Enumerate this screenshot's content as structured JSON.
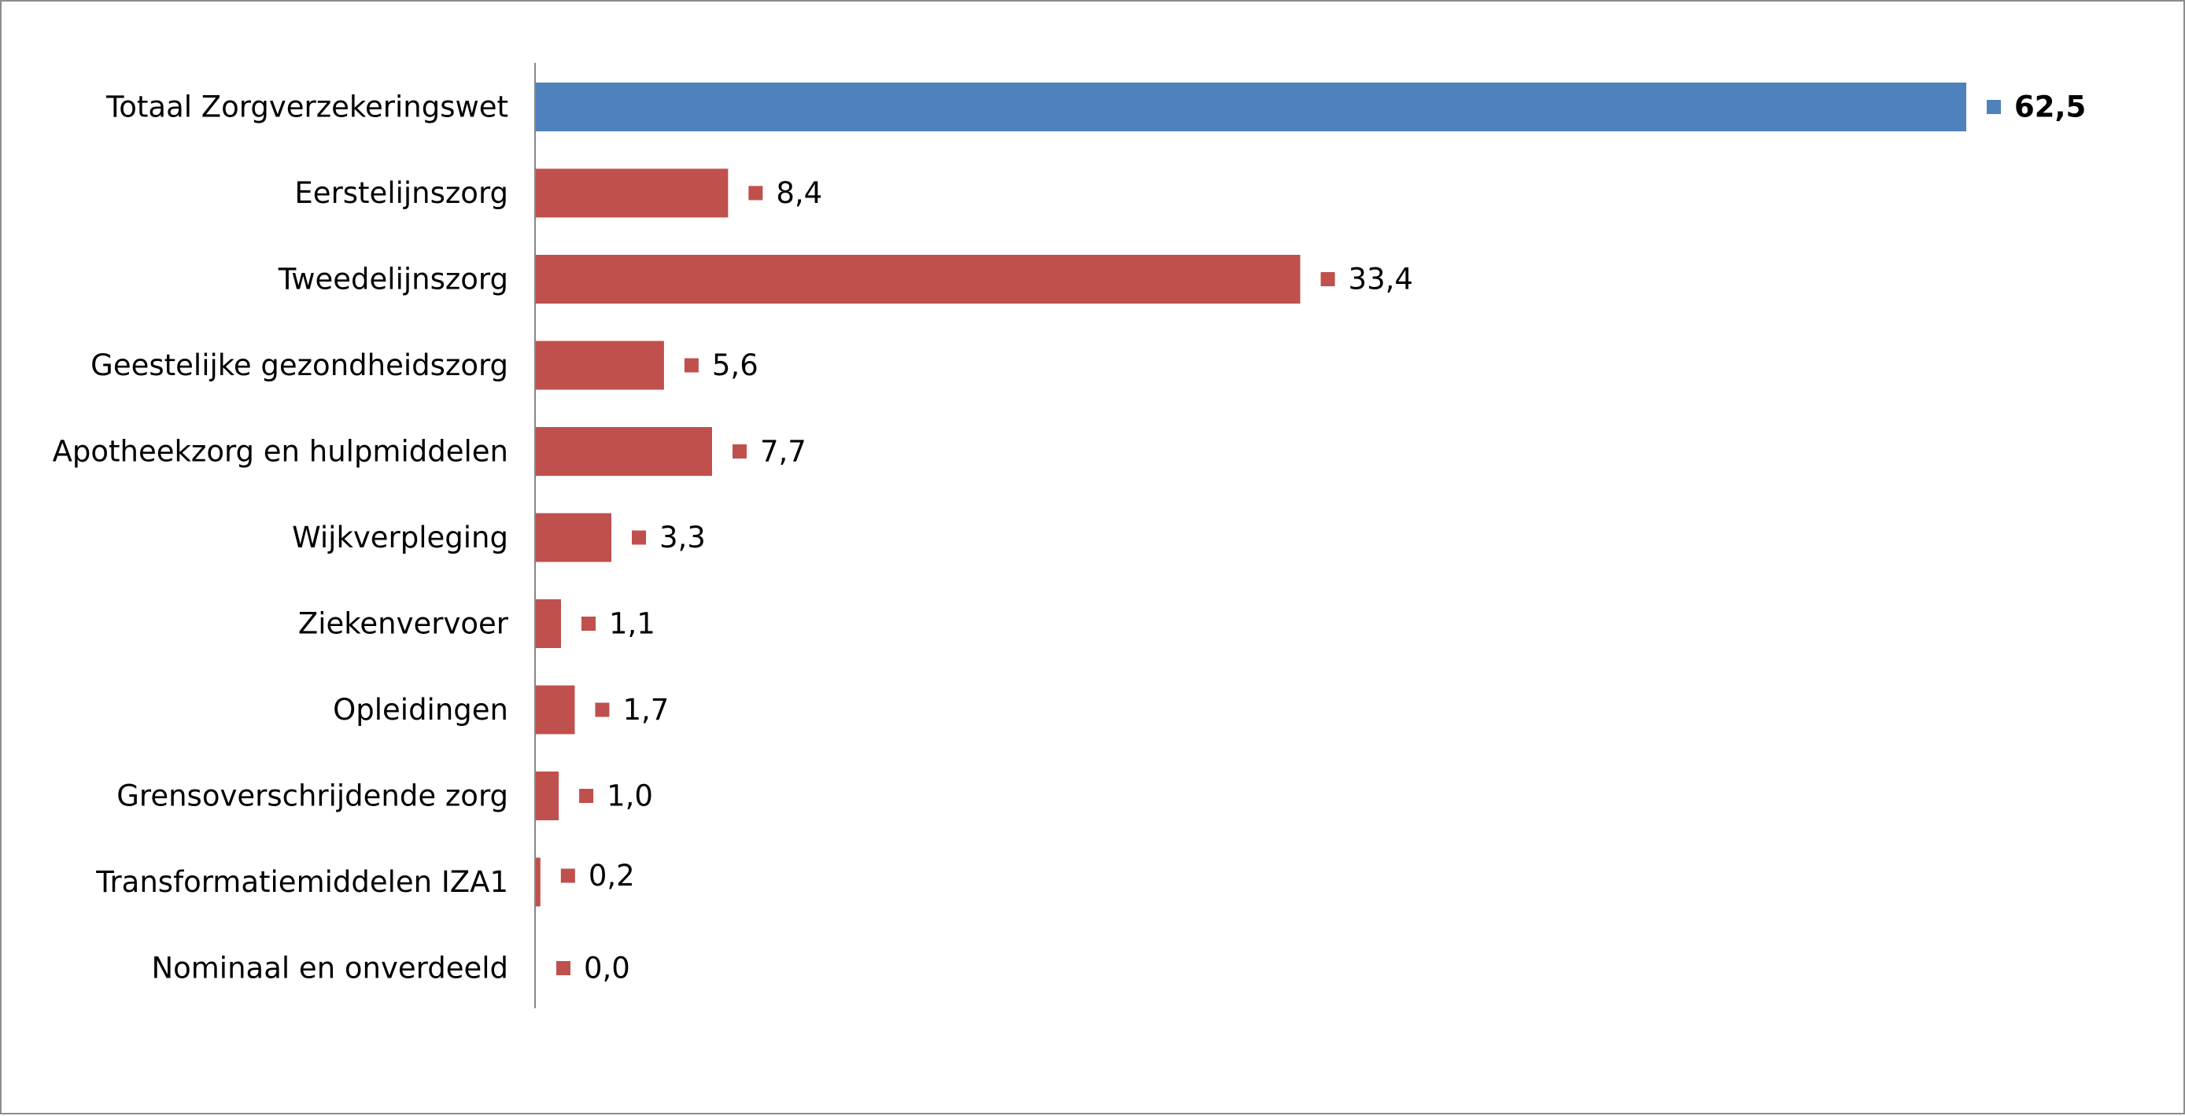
{
  "chart_data": {
    "type": "bar",
    "orientation": "horizontal",
    "categories": [
      "Totaal Zorgverzekeringswet",
      "Eerstelijnszorg",
      "Tweedelijnszorg",
      "Geestelijke gezondheidszorg",
      "Apotheekzorg en hulpmiddelen",
      "Wijkverpleging",
      "Ziekenvervoer",
      "Opleidingen",
      "Grensoverschrijdende zorg",
      "Transformatiemiddelen IZA1",
      "Nominaal en onverdeeld"
    ],
    "values": [
      62.5,
      8.4,
      33.4,
      5.6,
      7.7,
      3.3,
      1.1,
      1.7,
      1.0,
      0.2,
      0.0
    ],
    "value_labels": [
      "62,5",
      "8,4",
      "33,4",
      "5,6",
      "7,7",
      "3,3",
      "1,1",
      "1,7",
      "1,0",
      "0,2",
      "0,0"
    ],
    "total_color": "#4F81BD",
    "component_color": "#C0504D",
    "axis_color": "#868686",
    "title": "",
    "xlabel": "",
    "ylabel": "",
    "xlim": [
      0,
      62.5
    ],
    "grid": false,
    "legend": false
  }
}
